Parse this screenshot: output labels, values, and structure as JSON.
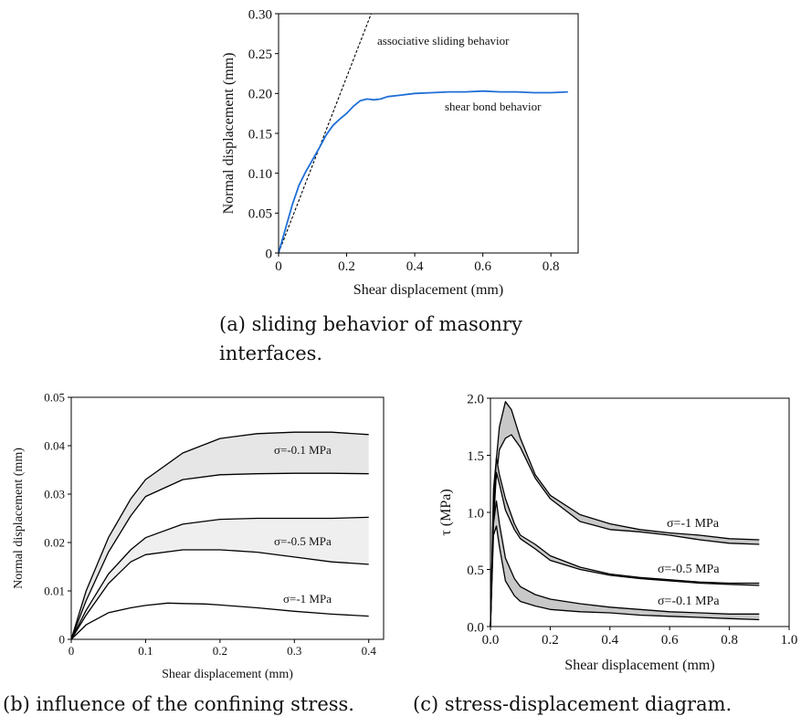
{
  "captions": {
    "a_line1": "(a)  sliding  behavior  of  masonry",
    "a_line2": "interfaces.",
    "b": "(b) influence of the confining stress.",
    "c": "(c) stress-displacement diagram."
  },
  "chart_data": [
    {
      "id": "a",
      "type": "line",
      "xlabel": "Shear displacement (mm)",
      "ylabel": "Normal displacement (mm)",
      "xlim": [
        0,
        0.88
      ],
      "ylim": [
        0,
        0.3
      ],
      "xticks": [
        "0",
        "0.2",
        "0.4",
        "0.6",
        "0.8"
      ],
      "yticks": [
        "0",
        "0.05",
        "0.10",
        "0.15",
        "0.20",
        "0.25",
        "0.30"
      ],
      "series": [
        {
          "name": "associative sliding behavior",
          "style": "dashed",
          "color": "#000000",
          "x": [
            0,
            0.272
          ],
          "y": [
            0,
            0.3
          ]
        },
        {
          "name": "shear bond behavior",
          "style": "solid",
          "color": "#1f6fd6",
          "x": [
            0,
            0.02,
            0.04,
            0.06,
            0.08,
            0.1,
            0.12,
            0.14,
            0.16,
            0.18,
            0.2,
            0.22,
            0.24,
            0.26,
            0.28,
            0.3,
            0.32,
            0.36,
            0.4,
            0.45,
            0.5,
            0.55,
            0.6,
            0.65,
            0.7,
            0.75,
            0.8,
            0.85
          ],
          "y": [
            0,
            0.03,
            0.06,
            0.085,
            0.102,
            0.117,
            0.132,
            0.148,
            0.16,
            0.168,
            0.175,
            0.184,
            0.191,
            0.193,
            0.192,
            0.193,
            0.196,
            0.198,
            0.2,
            0.201,
            0.202,
            0.202,
            0.203,
            0.202,
            0.202,
            0.201,
            0.201,
            0.202
          ]
        }
      ]
    },
    {
      "id": "b",
      "type": "area",
      "xlabel": "Shear displacement (mm)",
      "ylabel": "Normal displacement (mm)",
      "xlim": [
        0,
        0.42
      ],
      "ylim": [
        0,
        0.05
      ],
      "xticks": [
        "0",
        "0.1",
        "0.2",
        "0.3",
        "0.4"
      ],
      "yticks": [
        "0",
        "0.01",
        "0.02",
        "0.03",
        "0.04",
        "0.05"
      ],
      "annotations": [
        "σ=-0.1 MPa",
        "σ=-0.5 MPa",
        "σ=-1 MPa"
      ],
      "bands": [
        {
          "label": "σ=-0.1 MPa",
          "fill": "#e6e6e6",
          "x": [
            0,
            0.02,
            0.05,
            0.08,
            0.1,
            0.15,
            0.2,
            0.25,
            0.3,
            0.35,
            0.4
          ],
          "upper": [
            0,
            0.01,
            0.021,
            0.029,
            0.033,
            0.0385,
            0.0415,
            0.0425,
            0.0428,
            0.0428,
            0.0423
          ],
          "lower": [
            0,
            0.008,
            0.018,
            0.0255,
            0.0295,
            0.033,
            0.034,
            0.0342,
            0.0343,
            0.0343,
            0.0342
          ]
        },
        {
          "label": "σ=-0.5 MPa",
          "fill": "#efefef",
          "x": [
            0,
            0.02,
            0.05,
            0.08,
            0.1,
            0.15,
            0.2,
            0.25,
            0.3,
            0.35,
            0.4
          ],
          "upper": [
            0,
            0.006,
            0.0135,
            0.0185,
            0.021,
            0.0238,
            0.0248,
            0.025,
            0.025,
            0.025,
            0.0252
          ],
          "lower": [
            0,
            0.005,
            0.0115,
            0.016,
            0.0175,
            0.0185,
            0.0185,
            0.018,
            0.017,
            0.016,
            0.0155
          ]
        }
      ],
      "lines": [
        {
          "label": "σ=-1 MPa",
          "x": [
            0,
            0.02,
            0.05,
            0.08,
            0.1,
            0.13,
            0.15,
            0.18,
            0.2,
            0.25,
            0.3,
            0.35,
            0.4
          ],
          "y": [
            0,
            0.003,
            0.0055,
            0.0065,
            0.007,
            0.0075,
            0.0074,
            0.0073,
            0.0071,
            0.0065,
            0.0058,
            0.0052,
            0.0048
          ]
        }
      ]
    },
    {
      "id": "c",
      "type": "area",
      "xlabel": "Shear displacement (mm)",
      "ylabel": "τ (MPa)",
      "xlim": [
        0,
        1.0
      ],
      "ylim": [
        0,
        2.0
      ],
      "xticks": [
        "0.0",
        "0.2",
        "0.4",
        "0.6",
        "0.8",
        "1.0"
      ],
      "yticks": [
        "0.0",
        "0.5",
        "1.0",
        "1.5",
        "2.0"
      ],
      "annotations": [
        "σ=-1 MPa",
        "σ=-0.5 MPa",
        "σ=-0.1 MPa"
      ],
      "bands": [
        {
          "label": "σ=-1 MPa",
          "fill": "#c8c8c8",
          "x": [
            0,
            0.01,
            0.03,
            0.05,
            0.07,
            0.1,
            0.15,
            0.2,
            0.3,
            0.4,
            0.5,
            0.6,
            0.7,
            0.8,
            0.9
          ],
          "upper": [
            0,
            1.2,
            1.75,
            1.97,
            1.9,
            1.65,
            1.33,
            1.15,
            0.98,
            0.9,
            0.85,
            0.82,
            0.8,
            0.77,
            0.76
          ],
          "lower": [
            0,
            1.1,
            1.55,
            1.65,
            1.68,
            1.57,
            1.3,
            1.12,
            0.92,
            0.85,
            0.83,
            0.8,
            0.76,
            0.73,
            0.72
          ]
        },
        {
          "label": "σ=-0.5 MPa",
          "fill": "#c8c8c8",
          "x": [
            0,
            0.01,
            0.02,
            0.03,
            0.05,
            0.08,
            0.1,
            0.15,
            0.2,
            0.3,
            0.4,
            0.5,
            0.6,
            0.7,
            0.8,
            0.9
          ],
          "upper": [
            0,
            1.0,
            1.48,
            1.33,
            1.12,
            0.9,
            0.8,
            0.72,
            0.62,
            0.52,
            0.46,
            0.43,
            0.41,
            0.39,
            0.38,
            0.38
          ],
          "lower": [
            0,
            0.9,
            1.35,
            1.25,
            1.02,
            0.85,
            0.77,
            0.68,
            0.58,
            0.5,
            0.45,
            0.42,
            0.4,
            0.38,
            0.37,
            0.36
          ]
        },
        {
          "label": "σ=-0.1 MPa",
          "fill": "#c8c8c8",
          "x": [
            0,
            0.01,
            0.02,
            0.03,
            0.05,
            0.08,
            0.1,
            0.15,
            0.2,
            0.3,
            0.4,
            0.5,
            0.6,
            0.7,
            0.8,
            0.9
          ],
          "upper": [
            0,
            0.9,
            1.1,
            0.9,
            0.6,
            0.42,
            0.35,
            0.28,
            0.24,
            0.2,
            0.17,
            0.15,
            0.13,
            0.12,
            0.11,
            0.11
          ],
          "lower": [
            0,
            0.8,
            0.88,
            0.7,
            0.4,
            0.27,
            0.22,
            0.18,
            0.15,
            0.13,
            0.12,
            0.1,
            0.09,
            0.08,
            0.07,
            0.06
          ]
        }
      ]
    }
  ]
}
